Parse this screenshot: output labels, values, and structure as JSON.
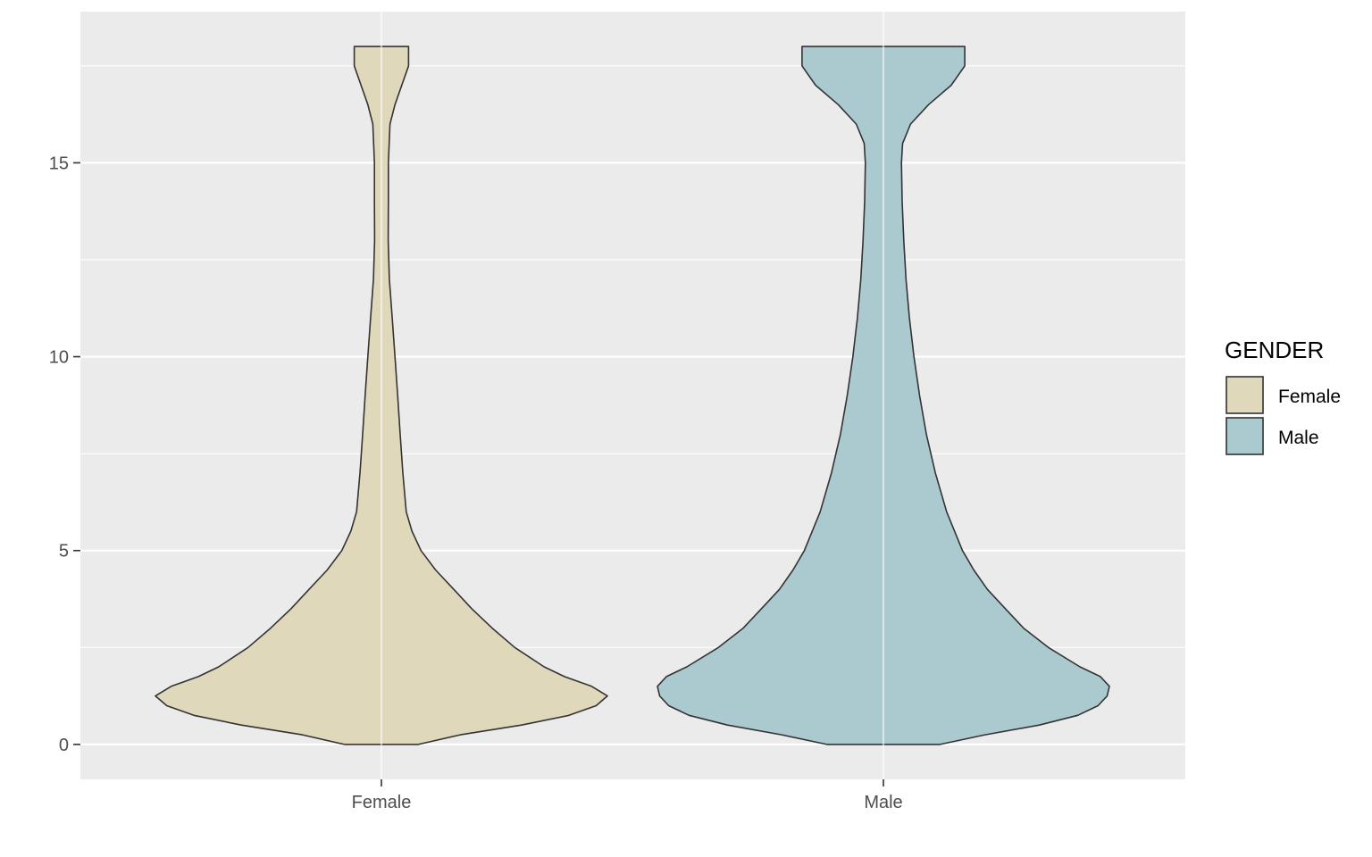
{
  "chart_data": {
    "type": "violin",
    "title": "",
    "xlabel": "",
    "ylabel": "",
    "categories": [
      "Female",
      "Male"
    ],
    "ylim": [
      -0.9,
      18.9
    ],
    "y_ticks": [
      0,
      5,
      10,
      15
    ],
    "y_tick_labels": [
      "0",
      "5",
      "10",
      "15"
    ],
    "grid": true,
    "legend": {
      "title": "GENDER",
      "position": "right",
      "entries": [
        "Female",
        "Male"
      ]
    },
    "series": [
      {
        "name": "Female",
        "color": "#e0d8bb",
        "y_min": 0,
        "y_max": 18,
        "density": [
          [
            0,
            0.163
          ],
          [
            0.25,
            0.35
          ],
          [
            0.5,
            0.62
          ],
          [
            0.75,
            0.83
          ],
          [
            1.0,
            0.95
          ],
          [
            1.25,
            1.0
          ],
          [
            1.5,
            0.93
          ],
          [
            1.75,
            0.81
          ],
          [
            2.0,
            0.72
          ],
          [
            2.5,
            0.59
          ],
          [
            3.0,
            0.49
          ],
          [
            3.5,
            0.4
          ],
          [
            4.0,
            0.32
          ],
          [
            4.5,
            0.24
          ],
          [
            5.0,
            0.175
          ],
          [
            5.5,
            0.135
          ],
          [
            6.0,
            0.11
          ],
          [
            7.0,
            0.095
          ],
          [
            8.0,
            0.083
          ],
          [
            9.0,
            0.072
          ],
          [
            10.0,
            0.06
          ],
          [
            11.0,
            0.048
          ],
          [
            12.0,
            0.035
          ],
          [
            13.0,
            0.03
          ],
          [
            14.0,
            0.031
          ],
          [
            15.0,
            0.031
          ],
          [
            16.0,
            0.038
          ],
          [
            16.5,
            0.06
          ],
          [
            17.0,
            0.09
          ],
          [
            17.5,
            0.12
          ],
          [
            18.0,
            0.12
          ]
        ]
      },
      {
        "name": "Male",
        "color": "#abcacf",
        "y_min": 0,
        "y_max": 18,
        "density": [
          [
            0,
            0.25
          ],
          [
            0.25,
            0.45
          ],
          [
            0.5,
            0.69
          ],
          [
            0.75,
            0.86
          ],
          [
            1.0,
            0.95
          ],
          [
            1.25,
            0.99
          ],
          [
            1.5,
            1.0
          ],
          [
            1.75,
            0.96
          ],
          [
            2.0,
            0.87
          ],
          [
            2.5,
            0.73
          ],
          [
            3.0,
            0.62
          ],
          [
            3.5,
            0.54
          ],
          [
            4.0,
            0.46
          ],
          [
            4.5,
            0.4
          ],
          [
            5.0,
            0.35
          ],
          [
            6.0,
            0.28
          ],
          [
            7.0,
            0.23
          ],
          [
            8.0,
            0.19
          ],
          [
            9.0,
            0.16
          ],
          [
            10.0,
            0.135
          ],
          [
            11.0,
            0.115
          ],
          [
            12.0,
            0.1
          ],
          [
            13.0,
            0.09
          ],
          [
            14.0,
            0.083
          ],
          [
            15.0,
            0.08
          ],
          [
            15.5,
            0.085
          ],
          [
            16.0,
            0.12
          ],
          [
            16.5,
            0.2
          ],
          [
            17.0,
            0.3
          ],
          [
            17.5,
            0.36
          ],
          [
            18.0,
            0.36
          ]
        ]
      }
    ]
  }
}
